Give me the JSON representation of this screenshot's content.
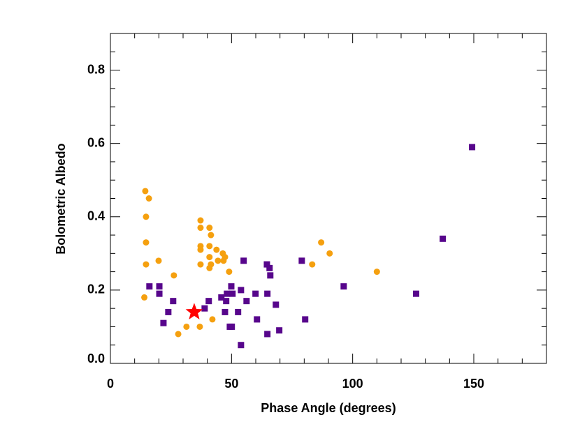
{
  "chart_data": {
    "type": "scatter",
    "xlabel": "Phase Angle (degrees)",
    "ylabel": "Bolometric Albedo",
    "xlim": [
      0,
      180
    ],
    "ylim": [
      0,
      0.9
    ],
    "xticks": [
      0,
      50,
      100,
      150
    ],
    "yticks": [
      {
        "value": 0,
        "label": "0.0"
      },
      0.2,
      0.4,
      0.6,
      0.8
    ],
    "minor_xticks": [
      10,
      20,
      30,
      40,
      60,
      70,
      80,
      90,
      110,
      120,
      130,
      140,
      160,
      170
    ],
    "minor_yticks": [
      0.05,
      0.1,
      0.15,
      0.25,
      0.3,
      0.35,
      0.45,
      0.5,
      0.55,
      0.65,
      0.7,
      0.75,
      0.85
    ],
    "series": [
      {
        "color": "#f5a00f",
        "marker": "circle",
        "x": [
          14,
          14.4,
          15.9,
          14.7,
          14.7,
          14.7,
          19.9,
          26.2,
          28,
          31.4,
          37.2,
          37.2,
          37.2,
          37.2,
          37.2,
          36.9,
          40.9,
          41.5,
          40.9,
          40.9,
          41.5,
          40.9,
          43.8,
          44.4,
          42.1,
          46.4,
          47.3,
          46.7,
          49,
          83.3,
          87,
          90.5,
          110
        ],
        "y": [
          0.18,
          0.47,
          0.45,
          0.4,
          0.33,
          0.27,
          0.28,
          0.24,
          0.08,
          0.1,
          0.39,
          0.37,
          0.32,
          0.31,
          0.27,
          0.1,
          0.37,
          0.35,
          0.32,
          0.29,
          0.27,
          0.26,
          0.31,
          0.28,
          0.12,
          0.3,
          0.29,
          0.28,
          0.25,
          0.27,
          0.33,
          0.3,
          0.25
        ]
      },
      {
        "color": "#57068c",
        "marker": "square",
        "x": [
          16.1,
          20.2,
          20.2,
          25.9,
          23.9,
          21.9,
          38.9,
          40.6,
          45.8,
          47.8,
          47.3,
          48.1,
          50.4,
          49.9,
          49.3,
          50.1,
          52.7,
          53.9,
          55,
          56.2,
          53.9,
          59.9,
          60.5,
          64.6,
          65.7,
          66,
          64.8,
          64.8,
          68.3,
          69.7,
          79,
          80.4,
          96.3,
          126.2,
          137.2,
          149.3
        ],
        "y": [
          0.21,
          0.21,
          0.19,
          0.17,
          0.14,
          0.11,
          0.15,
          0.17,
          0.18,
          0.17,
          0.14,
          0.19,
          0.19,
          0.21,
          0.1,
          0.1,
          0.14,
          0.2,
          0.28,
          0.17,
          0.05,
          0.19,
          0.12,
          0.27,
          0.26,
          0.24,
          0.19,
          0.08,
          0.16,
          0.09,
          0.28,
          0.12,
          0.21,
          0.19,
          0.34,
          0.59
        ]
      },
      {
        "color": "#ff0000",
        "marker": "star",
        "x": [
          34.6
        ],
        "y": [
          0.14
        ]
      }
    ]
  }
}
